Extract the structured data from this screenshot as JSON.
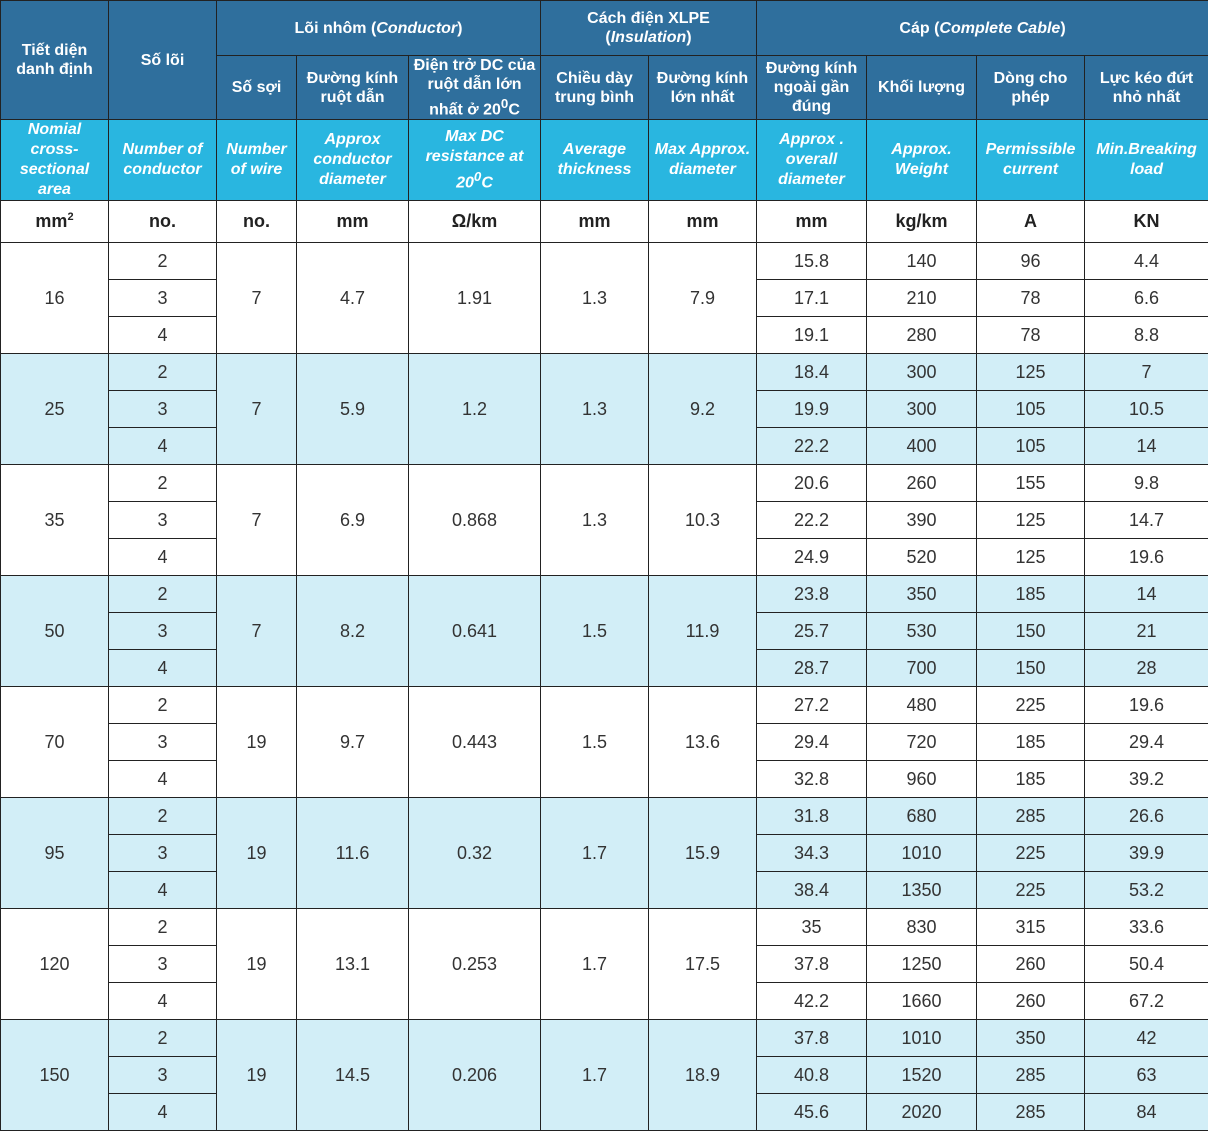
{
  "header": {
    "col_section_vi": "Tiết diện danh định",
    "col_cores_vi": "Số lõi",
    "group_conductor_vi": "Lõi nhôm",
    "group_conductor_en": "Conductor",
    "group_insulation_vi": "Cách điện XLPE",
    "group_insulation_en": "Insulation",
    "group_cable_vi": "Cáp",
    "group_cable_en": "Complete Cable",
    "wires_vi": "Số sợi",
    "cond_diam_vi": "Đường kính ruột dẫn",
    "dc_res_vi": "Điện trở DC của ruột dẫn lớn nhất ở 20",
    "dc_res_sup": "0",
    "dc_res_tail": "C",
    "avg_thick_vi": "Chiều dày trung bình",
    "max_diam_vi": "Đường kính lớn nhất",
    "overall_diam_vi": "Đường kính ngoài gần đúng",
    "weight_vi": "Khối lượng",
    "current_vi": "Dòng cho phép",
    "breaking_vi": "Lực kéo đứt nhỏ nhất"
  },
  "header_en": {
    "section": "Nomial cross-sectional area",
    "cores": "Number of conductor",
    "wires": "Number of wire",
    "cond_diam": "Approx conductor diameter",
    "dc_res": "Max DC resistance at 20",
    "dc_res_sup": "0",
    "dc_res_tail": "C",
    "avg_thick": "Average thickness",
    "max_diam": "Max Approx. diameter",
    "overall_diam": "Approx . overall diameter",
    "weight": "Approx. Weight",
    "current": "Permissible current",
    "breaking": "Min.Breaking load"
  },
  "units": {
    "section": "mm",
    "section_sup": "2",
    "cores": "no.",
    "wires": "no.",
    "cond_diam": "mm",
    "dc_res": "Ω/km",
    "avg_thick": "mm",
    "max_diam": "mm",
    "overall_diam": "mm",
    "weight": "kg/km",
    "current": "A",
    "breaking": "KN"
  },
  "groups": [
    {
      "section": "16",
      "wires": "7",
      "cond_diam": "4.7",
      "dc_res": "1.91",
      "avg_thick": "1.3",
      "max_diam": "7.9",
      "rows": [
        {
          "cores": "2",
          "overall": "15.8",
          "weight": "140",
          "current": "96",
          "breaking": "4.4"
        },
        {
          "cores": "3",
          "overall": "17.1",
          "weight": "210",
          "current": "78",
          "breaking": "6.6"
        },
        {
          "cores": "4",
          "overall": "19.1",
          "weight": "280",
          "current": "78",
          "breaking": "8.8"
        }
      ]
    },
    {
      "section": "25",
      "wires": "7",
      "cond_diam": "5.9",
      "dc_res": "1.2",
      "avg_thick": "1.3",
      "max_diam": "9.2",
      "rows": [
        {
          "cores": "2",
          "overall": "18.4",
          "weight": "300",
          "current": "125",
          "breaking": "7"
        },
        {
          "cores": "3",
          "overall": "19.9",
          "weight": "300",
          "current": "105",
          "breaking": "10.5"
        },
        {
          "cores": "4",
          "overall": "22.2",
          "weight": "400",
          "current": "105",
          "breaking": "14"
        }
      ]
    },
    {
      "section": "35",
      "wires": "7",
      "cond_diam": "6.9",
      "dc_res": "0.868",
      "avg_thick": "1.3",
      "max_diam": "10.3",
      "rows": [
        {
          "cores": "2",
          "overall": "20.6",
          "weight": "260",
          "current": "155",
          "breaking": "9.8"
        },
        {
          "cores": "3",
          "overall": "22.2",
          "weight": "390",
          "current": "125",
          "breaking": "14.7"
        },
        {
          "cores": "4",
          "overall": "24.9",
          "weight": "520",
          "current": "125",
          "breaking": "19.6"
        }
      ]
    },
    {
      "section": "50",
      "wires": "7",
      "cond_diam": "8.2",
      "dc_res": "0.641",
      "avg_thick": "1.5",
      "max_diam": "11.9",
      "rows": [
        {
          "cores": "2",
          "overall": "23.8",
          "weight": "350",
          "current": "185",
          "breaking": "14"
        },
        {
          "cores": "3",
          "overall": "25.7",
          "weight": "530",
          "current": "150",
          "breaking": "21"
        },
        {
          "cores": "4",
          "overall": "28.7",
          "weight": "700",
          "current": "150",
          "breaking": "28"
        }
      ]
    },
    {
      "section": "70",
      "wires": "19",
      "cond_diam": "9.7",
      "dc_res": "0.443",
      "avg_thick": "1.5",
      "max_diam": "13.6",
      "rows": [
        {
          "cores": "2",
          "overall": "27.2",
          "weight": "480",
          "current": "225",
          "breaking": "19.6"
        },
        {
          "cores": "3",
          "overall": "29.4",
          "weight": "720",
          "current": "185",
          "breaking": "29.4"
        },
        {
          "cores": "4",
          "overall": "32.8",
          "weight": "960",
          "current": "185",
          "breaking": "39.2"
        }
      ]
    },
    {
      "section": "95",
      "wires": "19",
      "cond_diam": "11.6",
      "dc_res": "0.32",
      "avg_thick": "1.7",
      "max_diam": "15.9",
      "rows": [
        {
          "cores": "2",
          "overall": "31.8",
          "weight": "680",
          "current": "285",
          "breaking": "26.6"
        },
        {
          "cores": "3",
          "overall": "34.3",
          "weight": "1010",
          "current": "225",
          "breaking": "39.9"
        },
        {
          "cores": "4",
          "overall": "38.4",
          "weight": "1350",
          "current": "225",
          "breaking": "53.2"
        }
      ]
    },
    {
      "section": "120",
      "wires": "19",
      "cond_diam": "13.1",
      "dc_res": "0.253",
      "avg_thick": "1.7",
      "max_diam": "17.5",
      "rows": [
        {
          "cores": "2",
          "overall": "35",
          "weight": "830",
          "current": "315",
          "breaking": "33.6"
        },
        {
          "cores": "3",
          "overall": "37.8",
          "weight": "1250",
          "current": "260",
          "breaking": "50.4"
        },
        {
          "cores": "4",
          "overall": "42.2",
          "weight": "1660",
          "current": "260",
          "breaking": "67.2"
        }
      ]
    },
    {
      "section": "150",
      "wires": "19",
      "cond_diam": "14.5",
      "dc_res": "0.206",
      "avg_thick": "1.7",
      "max_diam": "18.9",
      "rows": [
        {
          "cores": "2",
          "overall": "37.8",
          "weight": "1010",
          "current": "350",
          "breaking": "42"
        },
        {
          "cores": "3",
          "overall": "40.8",
          "weight": "1520",
          "current": "285",
          "breaking": "63"
        },
        {
          "cores": "4",
          "overall": "45.6",
          "weight": "2020",
          "current": "285",
          "breaking": "84"
        }
      ]
    }
  ],
  "colors": {
    "header_dark": "#2f6f9d",
    "header_light": "#29b6e0",
    "row_alt": "#d2eef7",
    "border": "#222222"
  }
}
